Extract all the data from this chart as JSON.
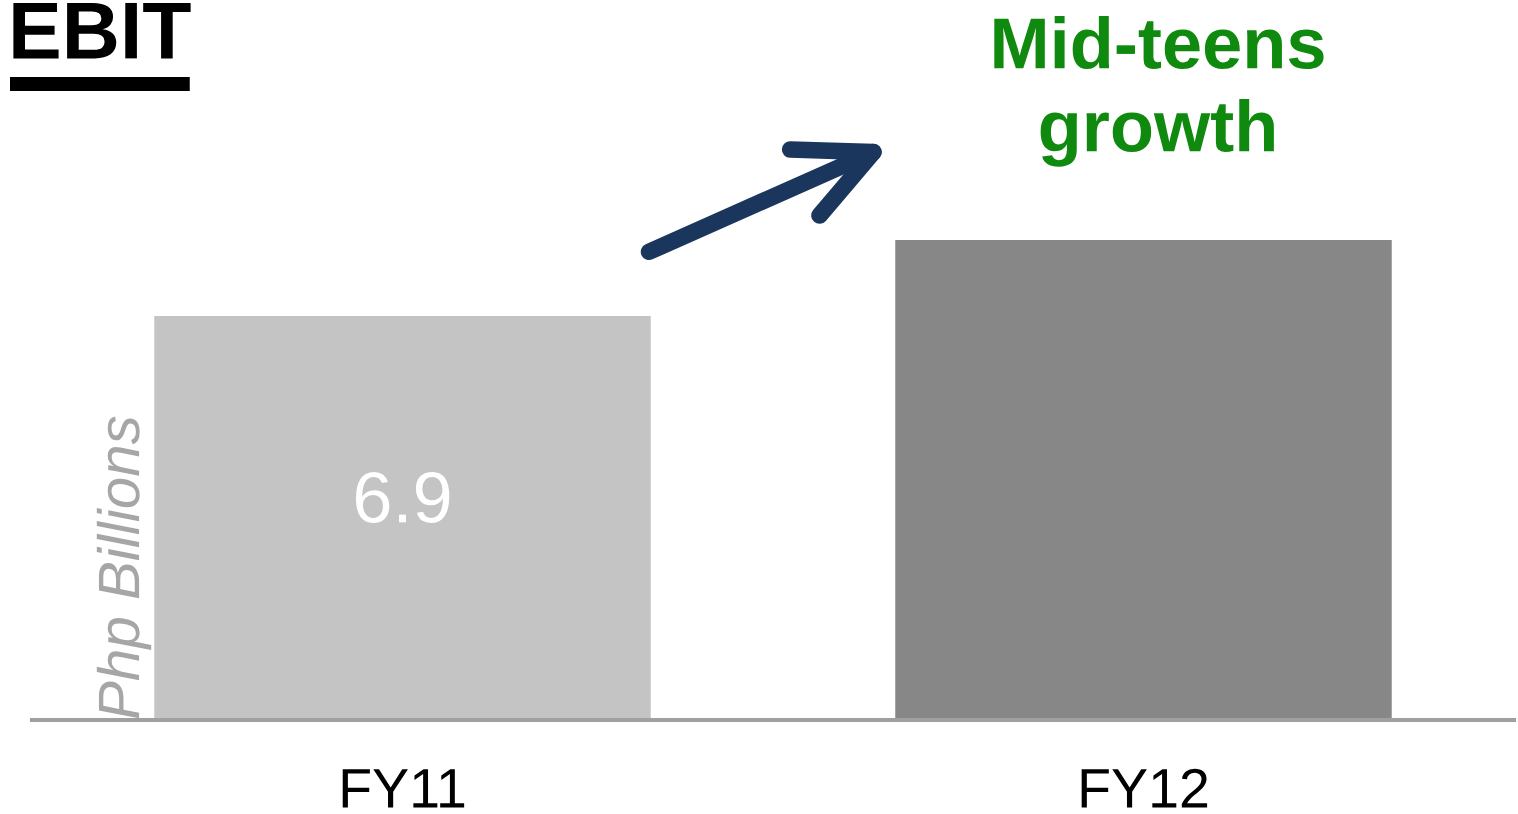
{
  "chart_data": {
    "type": "bar",
    "title": "EBIT",
    "ylabel": "Php Billions",
    "categories": [
      "FY11",
      "FY12"
    ],
    "values": [
      6.9,
      8.2
    ],
    "colors": [
      "#c4c4c4",
      "#878787"
    ],
    "value_labels": [
      "6.9",
      null
    ],
    "annotations": [
      "Mid-teens growth"
    ]
  }
}
